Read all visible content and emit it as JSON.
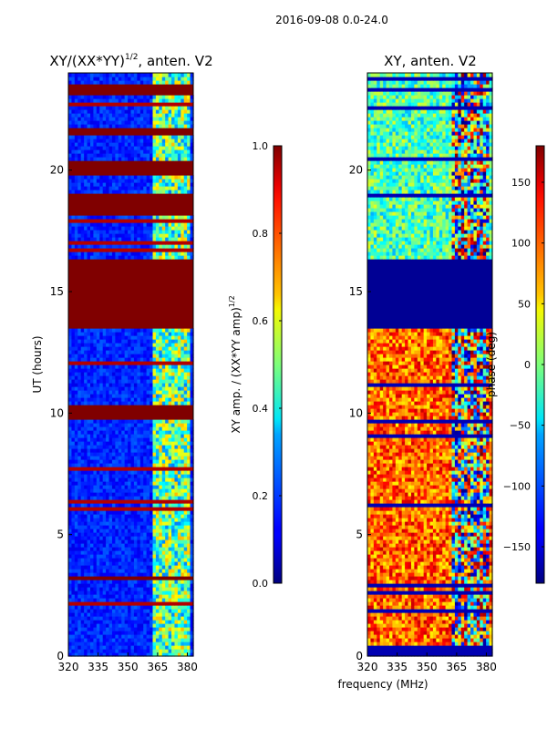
{
  "figure": {
    "suptitle": "2016-09-08 0.0-24.0",
    "shared_xlabel": "frequency (MHz)"
  },
  "chart_data": [
    {
      "type": "heatmap",
      "title_base": "XY/(XX*YY)",
      "title_exp": "1/2",
      "title_suffix": ", anten. V2",
      "xlabel": "",
      "ylabel": "UT (hours)",
      "xlim": [
        320,
        383
      ],
      "ylim": [
        0,
        24
      ],
      "xticks": [
        320,
        335,
        350,
        365,
        380
      ],
      "yticks": [
        0,
        5,
        10,
        15,
        20
      ],
      "colormap": "jet",
      "clim": [
        0.0,
        1.0
      ],
      "colorbar_label_base": "XY amp. / (XX*YY amp)",
      "colorbar_label_exp": "1/2",
      "colorbar_ticks": [
        "0.0",
        "0.2",
        "0.4",
        "0.6",
        "0.8",
        "1.0"
      ],
      "colorbar_tick_values": [
        0.0,
        0.2,
        0.4,
        0.6,
        0.8,
        1.0
      ],
      "saturated_bands_hours": [
        [
          23.1,
          23.5
        ],
        [
          21.5,
          21.8
        ],
        [
          19.8,
          20.4
        ],
        [
          18.2,
          19.1
        ],
        [
          13.5,
          16.3
        ],
        [
          9.8,
          10.3
        ],
        [
          3.1,
          3.3
        ]
      ]
    },
    {
      "type": "heatmap",
      "title": "XY, anten. V2",
      "xlabel": "frequency (MHz)",
      "ylabel": "",
      "xlim": [
        320,
        383
      ],
      "ylim": [
        0,
        24
      ],
      "xticks": [
        320,
        335,
        350,
        365,
        380
      ],
      "yticks": [
        0,
        5,
        10,
        15,
        20
      ],
      "colormap": "jet",
      "clim": [
        -180,
        180
      ],
      "colorbar_label": "phase (deg)",
      "colorbar_ticks": [
        "150",
        "100",
        "50",
        "0",
        "−50",
        "−100",
        "−150"
      ],
      "colorbar_tick_values": [
        150,
        100,
        50,
        0,
        -50,
        -100,
        -150
      ],
      "flagged_band_hours": [
        13.5,
        16.3
      ]
    }
  ]
}
